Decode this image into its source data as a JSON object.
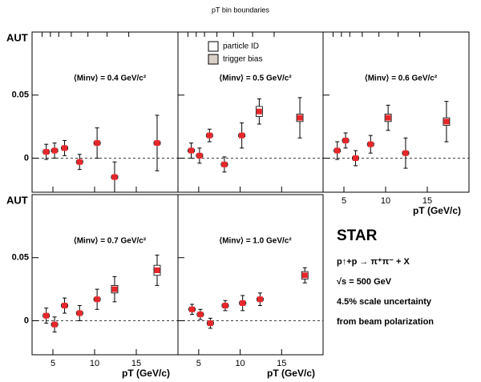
{
  "header": {
    "top_label": "pT bin boundaries"
  },
  "chart_data": [
    {
      "type": "errorbar",
      "panel_label": "⟨Minv⟩ = 0.4 GeV/c²",
      "ylabel": "AUT",
      "x": [
        4.2,
        5.2,
        6.4,
        8.2,
        10.3,
        12.4,
        17.5
      ],
      "values": [
        0.005,
        0.006,
        0.008,
        -0.003,
        0.012,
        -0.015,
        0.012
      ],
      "errors": [
        0.006,
        0.006,
        0.006,
        0.006,
        0.012,
        0.012,
        0.022
      ],
      "sys": [
        0.001,
        0.001,
        0.001,
        0.001,
        0.001,
        0.001,
        0.001
      ],
      "xlim": [
        2.5,
        20
      ],
      "ylim": [
        -0.027,
        0.1
      ],
      "xticks": [
        5,
        10,
        15
      ],
      "yticks": [
        0,
        0.05
      ],
      "bin_boundaries": [
        3.7,
        4.7,
        5.7,
        7.2,
        9.2,
        11.5,
        14.1
      ],
      "color": "#e8262a"
    },
    {
      "type": "errorbar",
      "panel_label": "⟨Minv⟩ = 0.5 GeV/c²",
      "x": [
        4.1,
        5.1,
        6.3,
        8.1,
        10.2,
        12.3,
        17.2
      ],
      "values": [
        0.006,
        0.002,
        0.018,
        -0.005,
        0.018,
        0.037,
        0.032
      ],
      "errors": [
        0.006,
        0.006,
        0.005,
        0.006,
        0.01,
        0.01,
        0.016
      ],
      "sys": [
        0.001,
        0.001,
        0.001,
        0.001,
        0.001,
        0.004,
        0.003
      ],
      "xlim": [
        2.5,
        20
      ],
      "ylim": [
        -0.027,
        0.1
      ],
      "xticks": [
        5,
        10,
        15
      ],
      "yticks": [
        0,
        0.05
      ],
      "bin_boundaries": [
        3.7,
        4.7,
        5.7,
        7.2,
        9.2,
        11.5,
        14.1
      ],
      "legend": [
        {
          "name": "particle ID",
          "color": "#ffffff"
        },
        {
          "name": "trigger bias",
          "color": "#d9d0c7"
        }
      ],
      "color": "#e8262a"
    },
    {
      "type": "errorbar",
      "panel_label": "⟨Minv⟩ = 0.6 GeV/c²",
      "xlabel": "pT (GeV/c)",
      "x": [
        4.2,
        5.2,
        6.4,
        8.2,
        10.3,
        12.4,
        17.3
      ],
      "values": [
        0.006,
        0.014,
        0.0,
        0.011,
        0.032,
        0.004,
        0.029
      ],
      "errors": [
        0.007,
        0.006,
        0.006,
        0.007,
        0.01,
        0.012,
        0.016
      ],
      "sys": [
        0.001,
        0.001,
        0.001,
        0.001,
        0.003,
        0.001,
        0.003
      ],
      "xlim": [
        2.5,
        20
      ],
      "ylim": [
        -0.027,
        0.1
      ],
      "xticks": [
        5,
        10,
        15
      ],
      "yticks": [
        0,
        0.05
      ],
      "bin_boundaries": [
        3.7,
        4.7,
        5.7,
        7.2,
        9.2,
        11.5,
        14.1
      ],
      "color": "#e8262a"
    },
    {
      "type": "errorbar",
      "panel_label": "⟨Minv⟩ = 0.7 GeV/c²",
      "ylabel": "AUT",
      "xlabel": "pT (GeV/c)",
      "x": [
        4.2,
        5.2,
        6.4,
        8.2,
        10.3,
        12.4,
        17.5
      ],
      "values": [
        0.004,
        -0.003,
        0.012,
        0.006,
        0.017,
        0.025,
        0.04
      ],
      "errors": [
        0.006,
        0.006,
        0.006,
        0.006,
        0.008,
        0.01,
        0.012
      ],
      "sys": [
        0.001,
        0.001,
        0.001,
        0.001,
        0.001,
        0.003,
        0.004
      ],
      "xlim": [
        2.5,
        20
      ],
      "ylim": [
        -0.027,
        0.1
      ],
      "xticks": [
        5,
        10,
        15
      ],
      "yticks": [
        0,
        0.05
      ],
      "color": "#e8262a"
    },
    {
      "type": "errorbar",
      "panel_label": "⟨Minv⟩ = 1.0 GeV/c²",
      "xlabel": "pT (GeV/c)",
      "x": [
        4.2,
        5.2,
        6.4,
        8.2,
        10.3,
        12.4,
        17.8
      ],
      "values": [
        0.009,
        0.005,
        -0.002,
        0.012,
        0.014,
        0.017,
        0.036
      ],
      "errors": [
        0.004,
        0.004,
        0.004,
        0.004,
        0.006,
        0.005,
        0.006
      ],
      "sys": [
        0.001,
        0.001,
        0.001,
        0.001,
        0.001,
        0.001,
        0.003
      ],
      "xlim": [
        2.5,
        20
      ],
      "ylim": [
        -0.027,
        0.1
      ],
      "xticks": [
        5,
        10,
        15
      ],
      "yticks": [
        0,
        0.05
      ],
      "color": "#e8262a"
    }
  ],
  "info": {
    "experiment": "STAR",
    "reaction": "p↑+p → π⁺π⁻ + X",
    "energy": "√s = 500 GeV",
    "note1": "4.5% scale uncertainty",
    "note2": "from beam polarization"
  }
}
